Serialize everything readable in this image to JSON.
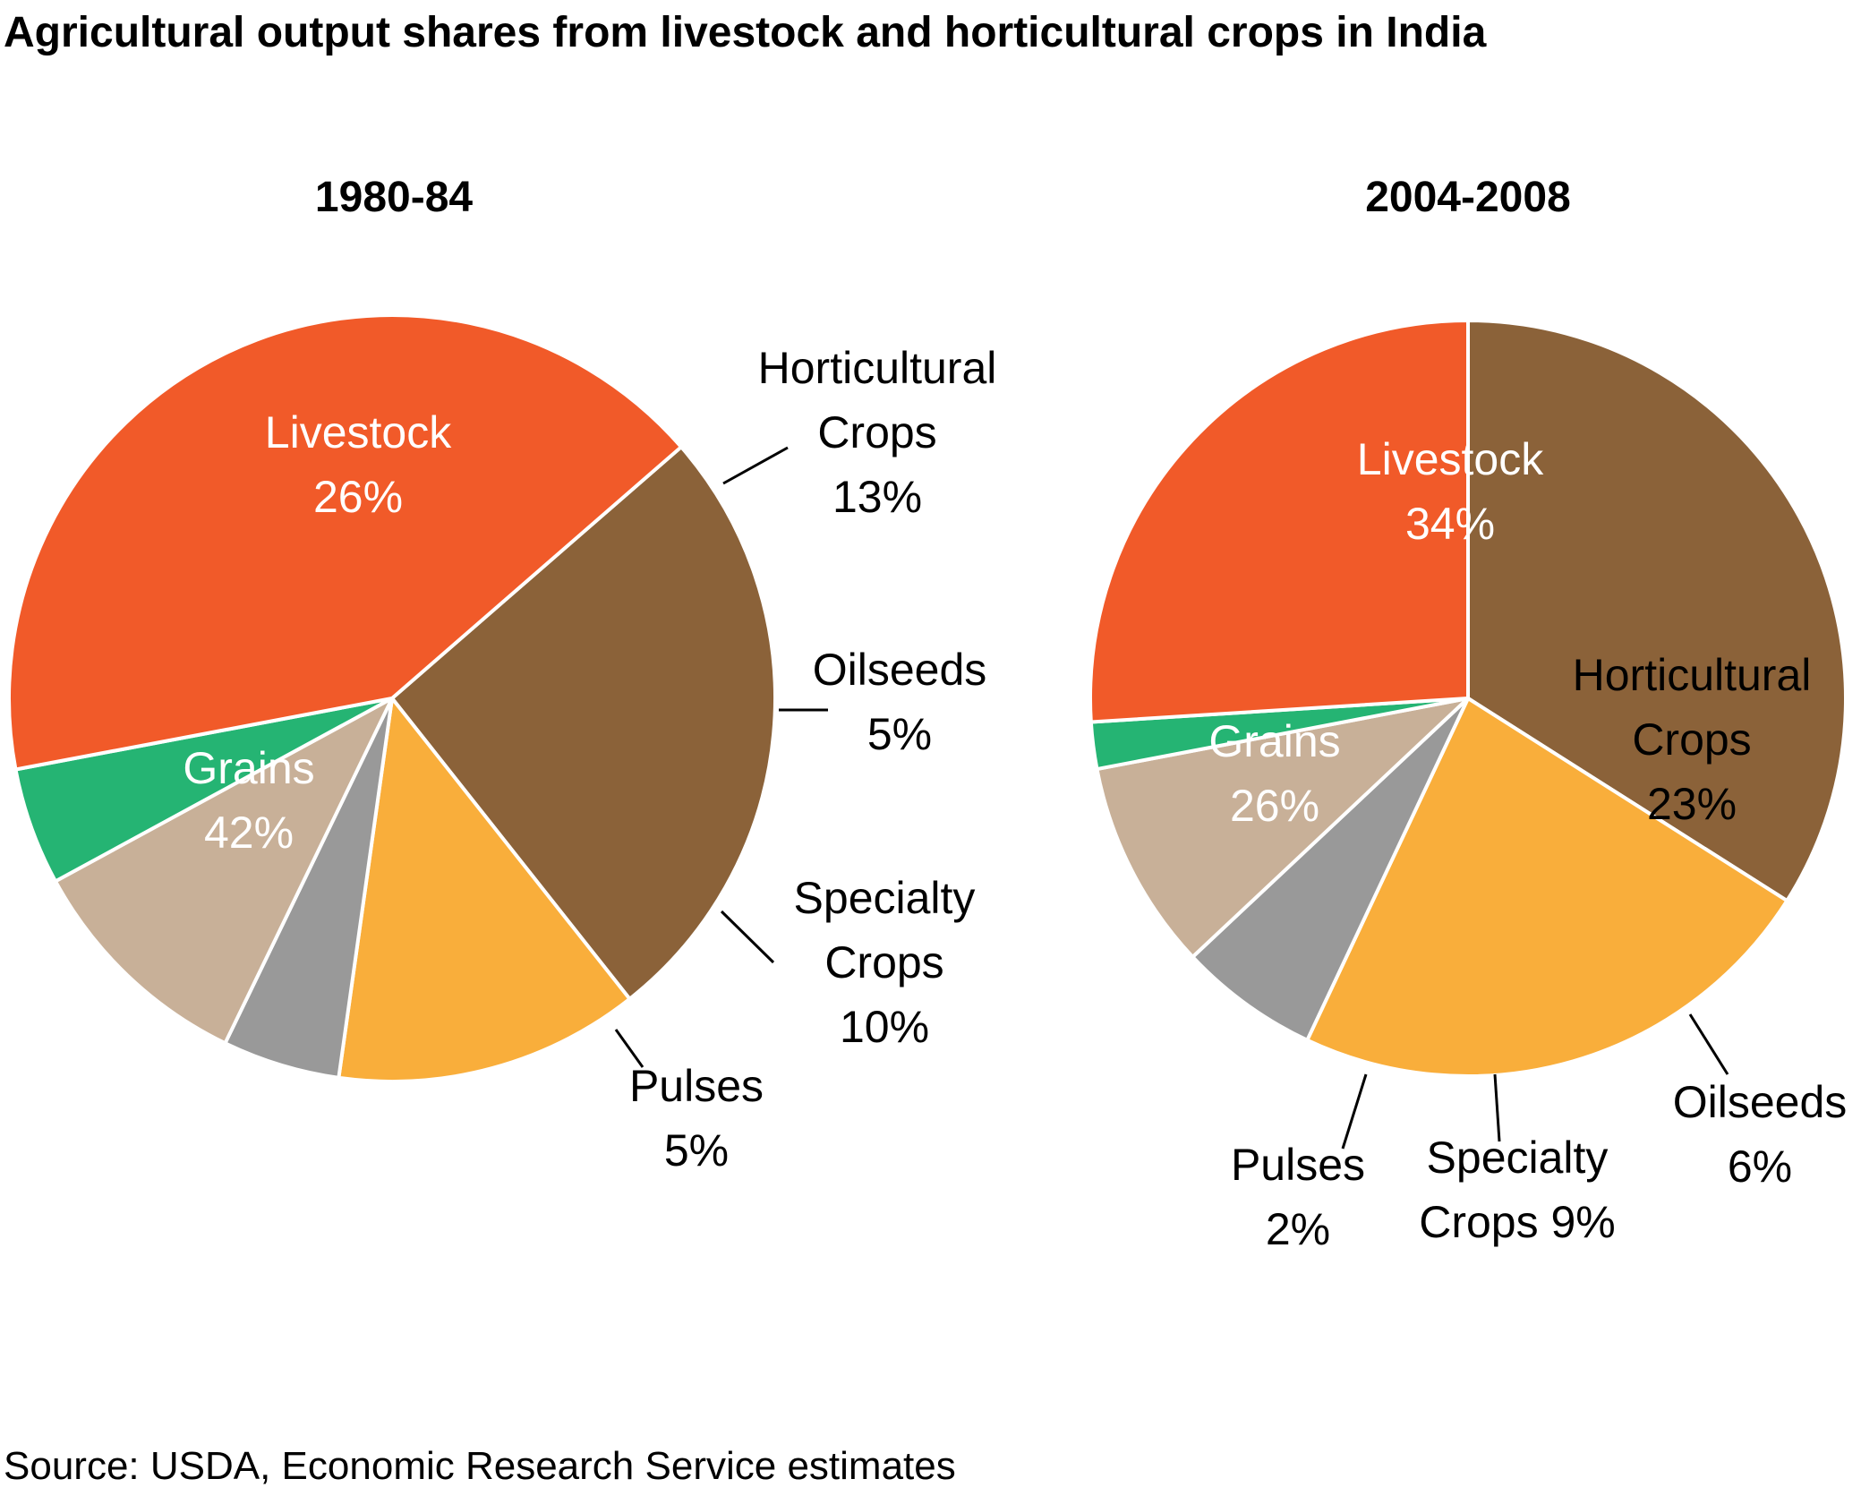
{
  "title": "Agricultural output shares from livestock and horticultural crops in India",
  "source": "Source: USDA, Economic Research Service estimates",
  "colors": {
    "Livestock": "#8B6239",
    "Horticultural Crops": "#F9AE3B",
    "Oilseeds": "#999999",
    "Specialty Crops": "#C8B098",
    "Pulses": "#25B473",
    "Grains": "#F15A29"
  },
  "chart_data": [
    {
      "type": "pie",
      "title": "1980-84",
      "categories": [
        "Livestock",
        "Horticultural Crops",
        "Oilseeds",
        "Specialty Crops",
        "Pulses",
        "Grains"
      ],
      "values": [
        26,
        13,
        5,
        10,
        5,
        42
      ],
      "labels": [
        {
          "lines": [
            "Livestock",
            "26%"
          ],
          "inside": true
        },
        {
          "lines": [
            "Horticultural",
            "Crops",
            "13%"
          ],
          "inside": false
        },
        {
          "lines": [
            "Oilseeds",
            "5%"
          ],
          "inside": false
        },
        {
          "lines": [
            "Specialty",
            "Crops",
            "10%"
          ],
          "inside": false
        },
        {
          "lines": [
            "Pulses",
            "5%"
          ],
          "inside": false
        },
        {
          "lines": [
            "Grains",
            "42%"
          ],
          "inside": true
        }
      ]
    },
    {
      "type": "pie",
      "title": "2004-2008",
      "categories": [
        "Livestock",
        "Horticultural Crops",
        "Oilseeds",
        "Specialty Crops",
        "Pulses",
        "Grains"
      ],
      "values": [
        34,
        23,
        6,
        9,
        2,
        26
      ],
      "labels": [
        {
          "lines": [
            "Livestock",
            "34%"
          ],
          "inside": true
        },
        {
          "lines": [
            "Horticultural",
            "Crops",
            "23%"
          ],
          "inside": true
        },
        {
          "lines": [
            "Oilseeds",
            "6%"
          ],
          "inside": false
        },
        {
          "lines": [
            "Specialty",
            "Crops 9%"
          ],
          "inside": false
        },
        {
          "lines": [
            "Pulses",
            "2%"
          ],
          "inside": false
        },
        {
          "lines": [
            "Grains",
            "26%"
          ],
          "inside": true
        }
      ]
    }
  ]
}
